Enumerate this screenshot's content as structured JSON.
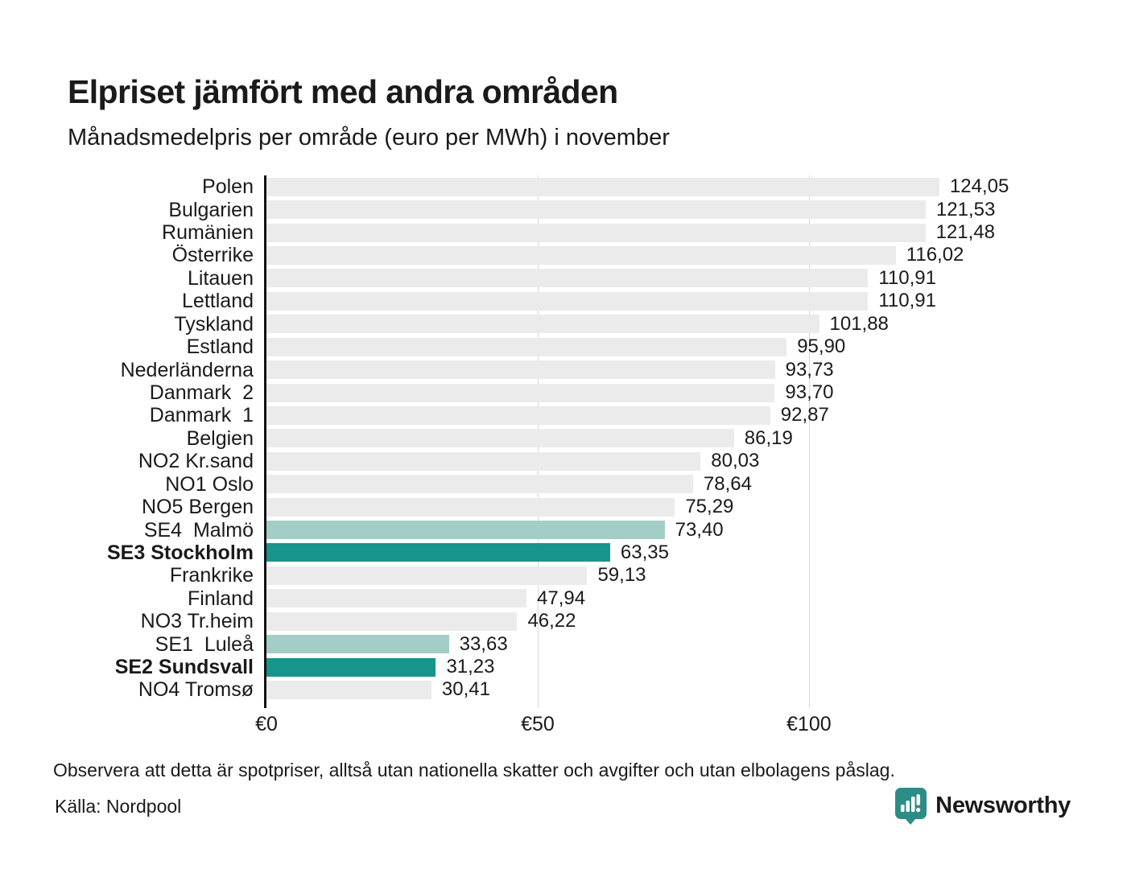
{
  "title": "Elpriset jämfört med andra områden",
  "subtitle": "Månadsmedelpris per område (euro per MWh) i november",
  "note": "Observera att detta är spotpriser, alltså utan nationella skatter och avgifter och utan elbolagens påslag.",
  "source": "Källa: Nordpool",
  "logo": {
    "text": "Newsworthy",
    "icon": "newsworthy-bar-chart-pin-icon",
    "color": "#2e8c86"
  },
  "colors": {
    "bar_default": "#ebebeb",
    "bar_sweden_light": "#a3cec7",
    "bar_sweden_dark": "#17948b",
    "axis": "#111111",
    "gridline": "#d8d8d8",
    "text": "#1a1a1a"
  },
  "chart_data": {
    "type": "bar",
    "orientation": "horizontal",
    "title": "Elpriset jämfört med andra områden",
    "subtitle": "Månadsmedelpris per område (euro per MWh) i november",
    "unit": "euro per MWh",
    "xlim": [
      0,
      130
    ],
    "grid": "vertical gridlines at 50 and 100",
    "legend": "none",
    "x_ticks": [
      {
        "value": 0,
        "label": "€0"
      },
      {
        "value": 50,
        "label": "€50"
      },
      {
        "value": 100,
        "label": "€100"
      }
    ],
    "bars": [
      {
        "label": "Polen",
        "value": 124.05,
        "display": "124,05",
        "style": "default",
        "bold": false
      },
      {
        "label": "Bulgarien",
        "value": 121.53,
        "display": "121,53",
        "style": "default",
        "bold": false
      },
      {
        "label": "Rumänien",
        "value": 121.48,
        "display": "121,48",
        "style": "default",
        "bold": false
      },
      {
        "label": "Österrike",
        "value": 116.02,
        "display": "116,02",
        "style": "default",
        "bold": false
      },
      {
        "label": "Litauen",
        "value": 110.91,
        "display": "110,91",
        "style": "default",
        "bold": false
      },
      {
        "label": "Lettland",
        "value": 110.91,
        "display": "110,91",
        "style": "default",
        "bold": false
      },
      {
        "label": "Tyskland",
        "value": 101.88,
        "display": "101,88",
        "style": "default",
        "bold": false
      },
      {
        "label": "Estland",
        "value": 95.9,
        "display": "95,90",
        "style": "default",
        "bold": false
      },
      {
        "label": "Nederländerna",
        "value": 93.73,
        "display": "93,73",
        "style": "default",
        "bold": false
      },
      {
        "label": "Danmark  2",
        "value": 93.7,
        "display": "93,70",
        "style": "default",
        "bold": false
      },
      {
        "label": "Danmark  1",
        "value": 92.87,
        "display": "92,87",
        "style": "default",
        "bold": false
      },
      {
        "label": "Belgien",
        "value": 86.19,
        "display": "86,19",
        "style": "default",
        "bold": false
      },
      {
        "label": "NO2 Kr.sand",
        "value": 80.03,
        "display": "80,03",
        "style": "default",
        "bold": false
      },
      {
        "label": "NO1 Oslo",
        "value": 78.64,
        "display": "78,64",
        "style": "default",
        "bold": false
      },
      {
        "label": "NO5 Bergen",
        "value": 75.29,
        "display": "75,29",
        "style": "default",
        "bold": false
      },
      {
        "label": "SE4  Malmö",
        "value": 73.4,
        "display": "73,40",
        "style": "light",
        "bold": false
      },
      {
        "label": "SE3 Stockholm",
        "value": 63.35,
        "display": "63,35",
        "style": "dark",
        "bold": true
      },
      {
        "label": "Frankrike",
        "value": 59.13,
        "display": "59,13",
        "style": "default",
        "bold": false
      },
      {
        "label": "Finland",
        "value": 47.94,
        "display": "47,94",
        "style": "default",
        "bold": false
      },
      {
        "label": "NO3 Tr.heim",
        "value": 46.22,
        "display": "46,22",
        "style": "default",
        "bold": false
      },
      {
        "label": "SE1  Luleå",
        "value": 33.63,
        "display": "33,63",
        "style": "light",
        "bold": false
      },
      {
        "label": "SE2 Sundsvall",
        "value": 31.23,
        "display": "31,23",
        "style": "dark",
        "bold": true
      },
      {
        "label": "NO4 Tromsø",
        "value": 30.41,
        "display": "30,41",
        "style": "default",
        "bold": false
      }
    ]
  }
}
